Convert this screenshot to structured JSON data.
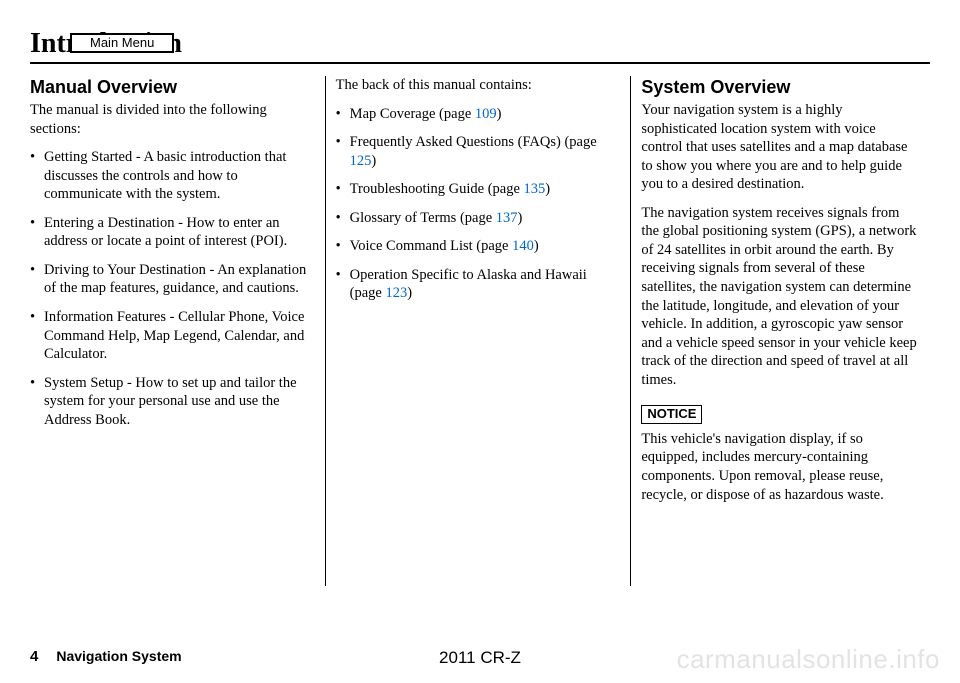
{
  "main_menu_label": "Main Menu",
  "title": "Introduction",
  "col1": {
    "heading": "Manual Overview",
    "intro": "The manual is divided into the following sections:",
    "items": [
      "Getting Started - A basic introduction that discusses the controls and how to communicate with the system.",
      "Entering a Destination - How to enter an address or locate a point of interest (POI).",
      "Driving to Your Destination - An explanation of the map features, guidance, and cautions.",
      "Information Features - Cellular Phone, Voice Command Help, Map Legend, Calendar, and Calculator.",
      "System Setup - How to set up and tailor the system for your personal use and use the Address Book."
    ]
  },
  "col2": {
    "intro": "The back of this manual contains:",
    "items": [
      {
        "pre": "Map Coverage (page ",
        "page": "109",
        "post": ")"
      },
      {
        "pre": "Frequently Asked Questions (FAQs) (page ",
        "page": "125",
        "post": ")"
      },
      {
        "pre": "Troubleshooting Guide (page ",
        "page": "135",
        "post": ")"
      },
      {
        "pre": "Glossary of Terms (page ",
        "page": "137",
        "post": ")"
      },
      {
        "pre": "Voice Command List (page ",
        "page": "140",
        "post": ")"
      },
      {
        "pre": "Operation Specific to Alaska and Hawaii (page ",
        "page": "123",
        "post": ")"
      }
    ]
  },
  "col3": {
    "heading": "System Overview",
    "para1": "Your navigation system is a highly sophisticated location system with voice control that uses satellites and a map database to show you where you are and to help guide you to a desired destination.",
    "para2": "The navigation system receives signals from the global positioning system (GPS), a network of 24 satellites in orbit around the earth. By receiving signals from several of these satellites, the navigation system can determine the latitude, longitude, and elevation of your vehicle. In addition, a gyroscopic yaw sensor and a vehicle speed sensor in your vehicle keep track of the direction and speed of travel at all times.",
    "notice_label": "NOTICE",
    "notice_text": "This vehicle's navigation display, if so equipped, includes mercury-containing components. Upon removal, please reuse, recycle, or dispose of as hazardous waste."
  },
  "footer": {
    "page_number": "4",
    "nav_label": "Navigation System",
    "model": "2011 CR-Z",
    "watermark": "carmanualsonline.info"
  },
  "colors": {
    "link": "#0066cc",
    "text": "#000000",
    "watermark": "#e3e3e3"
  }
}
